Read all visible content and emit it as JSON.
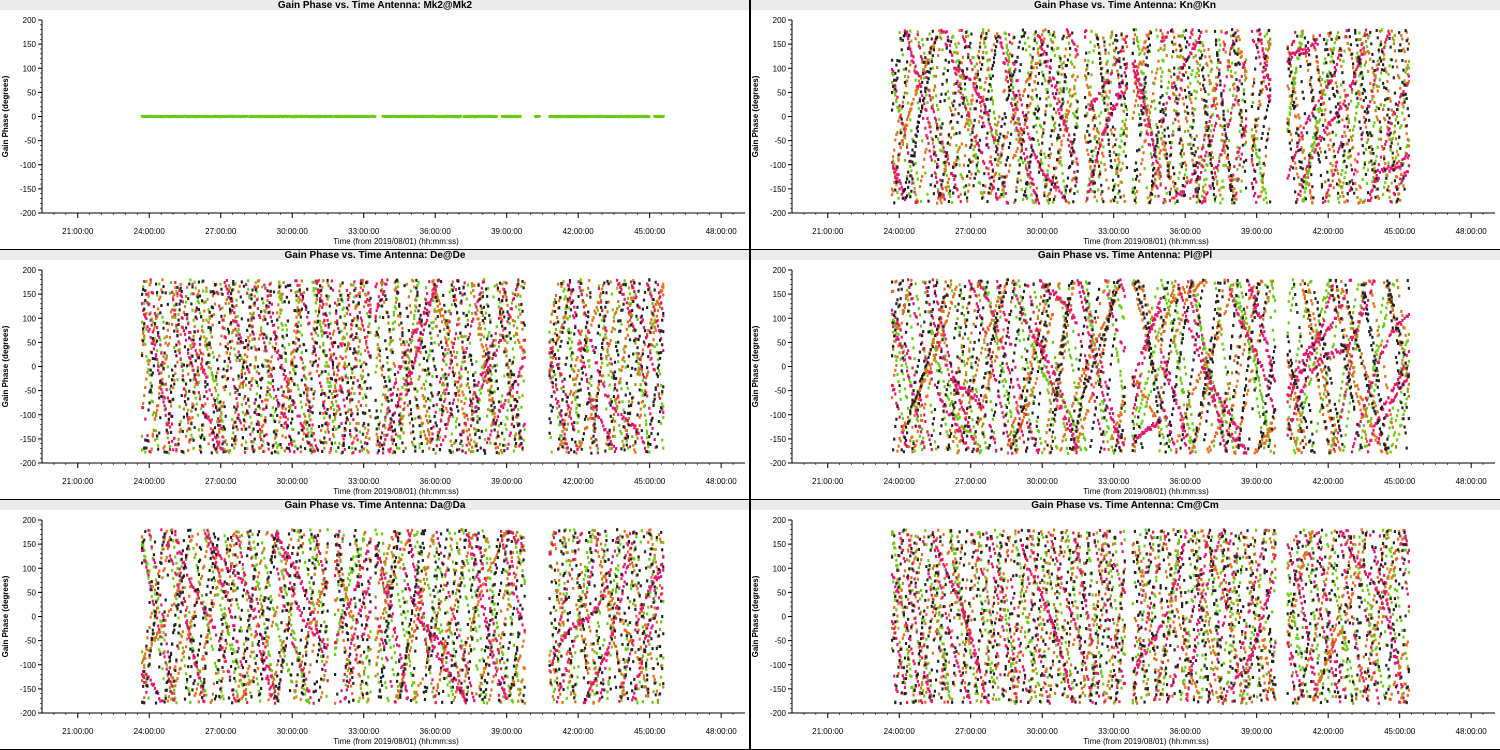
{
  "colors": {
    "series_a": "#6acc10",
    "series_b": "#e0701a",
    "series_c": "#e3166e",
    "series_d": "#222222",
    "title_band": "#ebebeb"
  },
  "chart_data": [
    {
      "type": "scatter",
      "title": "Gain Phase vs. Time Antenna: Mk2@Mk2",
      "xlabel": "Time (from 2019/08/01) (hh:mm:ss)",
      "ylabel": "Gain Phase (degrees)",
      "ylim": [
        -200,
        200
      ],
      "yticks": [
        -200,
        -150,
        -100,
        -50,
        0,
        50,
        100,
        150,
        200
      ],
      "xlim_hours": [
        19.5,
        49
      ],
      "xticks": [
        "21:00:00",
        "24:00:00",
        "27:00:00",
        "30:00:00",
        "33:00:00",
        "36:00:00",
        "39:00:00",
        "42:00:00",
        "45:00:00",
        "48:00:00"
      ],
      "pattern": "flat",
      "segments_hours": [
        [
          23.7,
          27.0
        ],
        [
          27.0,
          28.1
        ],
        [
          28.2,
          30.1
        ],
        [
          30.1,
          31.7
        ],
        [
          31.8,
          33.5
        ],
        [
          33.8,
          35.0
        ],
        [
          35.0,
          37.1
        ],
        [
          37.2,
          38.6
        ],
        [
          38.8,
          39.6
        ],
        [
          40.2,
          40.4
        ],
        [
          40.8,
          42.2
        ],
        [
          42.2,
          45.0
        ],
        [
          45.2,
          45.6
        ]
      ],
      "series": [
        {
          "color": "#6acc10",
          "values_deg": 0
        }
      ]
    },
    {
      "type": "scatter",
      "title": "Gain Phase vs. Time Antenna: Kn@Kn",
      "xlabel": "Time (from 2019/08/01) (hh:mm:ss)",
      "ylabel": "Gain Phase (degrees)",
      "ylim": [
        -200,
        200
      ],
      "yticks": [
        -200,
        -150,
        -100,
        -50,
        0,
        50,
        100,
        150,
        200
      ],
      "xlim_hours": [
        19.5,
        49
      ],
      "xticks": [
        "21:00:00",
        "24:00:00",
        "27:00:00",
        "30:00:00",
        "33:00:00",
        "36:00:00",
        "39:00:00",
        "42:00:00",
        "45:00:00",
        "48:00:00"
      ],
      "pattern": "wrapped",
      "segments_hours": [
        [
          23.7,
          31.5
        ],
        [
          31.8,
          33.6
        ],
        [
          33.8,
          35.0
        ],
        [
          35.0,
          38.6
        ],
        [
          38.8,
          39.6
        ],
        [
          40.3,
          45.4
        ]
      ],
      "series": [
        {
          "color": "#6acc10"
        },
        {
          "color": "#e0701a"
        },
        {
          "color": "#e3166e"
        },
        {
          "color": "#222222"
        }
      ]
    },
    {
      "type": "scatter",
      "title": "Gain Phase vs. Time Antenna: De@De",
      "xlabel": "Time (from 2019/08/01) (hh:mm:ss)",
      "ylabel": "Gain Phase (degrees)",
      "ylim": [
        -200,
        200
      ],
      "yticks": [
        -200,
        -150,
        -100,
        -50,
        0,
        50,
        100,
        150,
        200
      ],
      "xlim_hours": [
        19.5,
        49
      ],
      "xticks": [
        "21:00:00",
        "24:00:00",
        "27:00:00",
        "30:00:00",
        "33:00:00",
        "36:00:00",
        "39:00:00",
        "42:00:00",
        "45:00:00",
        "48:00:00"
      ],
      "pattern": "wrapped",
      "segments_hours": [
        [
          23.7,
          33.3
        ],
        [
          33.5,
          39.8
        ],
        [
          40.8,
          45.6
        ]
      ],
      "series": [
        {
          "color": "#6acc10"
        },
        {
          "color": "#e0701a"
        },
        {
          "color": "#e3166e"
        },
        {
          "color": "#222222"
        }
      ]
    },
    {
      "type": "scatter",
      "title": "Gain Phase vs. Time Antenna: Pl@Pl",
      "xlabel": "Time (from 2019/08/01) (hh:mm:ss)",
      "ylabel": "Gain Phase (degrees)",
      "ylim": [
        -200,
        200
      ],
      "yticks": [
        -200,
        -150,
        -100,
        -50,
        0,
        50,
        100,
        150,
        200
      ],
      "xlim_hours": [
        19.5,
        49
      ],
      "xticks": [
        "21:00:00",
        "24:00:00",
        "27:00:00",
        "30:00:00",
        "33:00:00",
        "36:00:00",
        "39:00:00",
        "42:00:00",
        "45:00:00",
        "48:00:00"
      ],
      "pattern": "wrapped",
      "segments_hours": [
        [
          23.7,
          33.5
        ],
        [
          33.8,
          35.0
        ],
        [
          35.0,
          39.8
        ],
        [
          40.3,
          45.4
        ]
      ],
      "series": [
        {
          "color": "#6acc10"
        },
        {
          "color": "#e0701a"
        },
        {
          "color": "#e3166e"
        },
        {
          "color": "#222222"
        }
      ]
    },
    {
      "type": "scatter",
      "title": "Gain Phase vs. Time Antenna: Da@Da",
      "xlabel": "Time (from 2019/08/01) (hh:mm:ss)",
      "ylabel": "Gain Phase (degrees)",
      "ylim": [
        -200,
        200
      ],
      "yticks": [
        -200,
        -150,
        -100,
        -50,
        0,
        50,
        100,
        150,
        200
      ],
      "xlim_hours": [
        19.5,
        49
      ],
      "xticks": [
        "21:00:00",
        "24:00:00",
        "27:00:00",
        "30:00:00",
        "33:00:00",
        "36:00:00",
        "39:00:00",
        "42:00:00",
        "45:00:00",
        "48:00:00"
      ],
      "pattern": "wrapped",
      "segments_hours": [
        [
          23.7,
          31.5
        ],
        [
          31.8,
          33.3
        ],
        [
          33.5,
          39.8
        ],
        [
          40.8,
          45.6
        ]
      ],
      "series": [
        {
          "color": "#6acc10"
        },
        {
          "color": "#e0701a"
        },
        {
          "color": "#e3166e"
        },
        {
          "color": "#222222"
        }
      ]
    },
    {
      "type": "scatter",
      "title": "Gain Phase vs. Time Antenna: Cm@Cm",
      "xlabel": "Time (from 2019/08/01) (hh:mm:ss)",
      "ylabel": "Gain Phase (degrees)",
      "ylim": [
        -200,
        200
      ],
      "yticks": [
        -200,
        -150,
        -100,
        -50,
        0,
        50,
        100,
        150,
        200
      ],
      "xlim_hours": [
        19.5,
        49
      ],
      "xticks": [
        "21:00:00",
        "24:00:00",
        "27:00:00",
        "30:00:00",
        "33:00:00",
        "36:00:00",
        "39:00:00",
        "42:00:00",
        "45:00:00",
        "48:00:00"
      ],
      "pattern": "wrapped",
      "segments_hours": [
        [
          23.7,
          33.5
        ],
        [
          33.8,
          39.8
        ],
        [
          40.3,
          45.4
        ]
      ],
      "series": [
        {
          "color": "#6acc10"
        },
        {
          "color": "#e0701a"
        },
        {
          "color": "#e3166e"
        },
        {
          "color": "#222222"
        }
      ]
    }
  ]
}
